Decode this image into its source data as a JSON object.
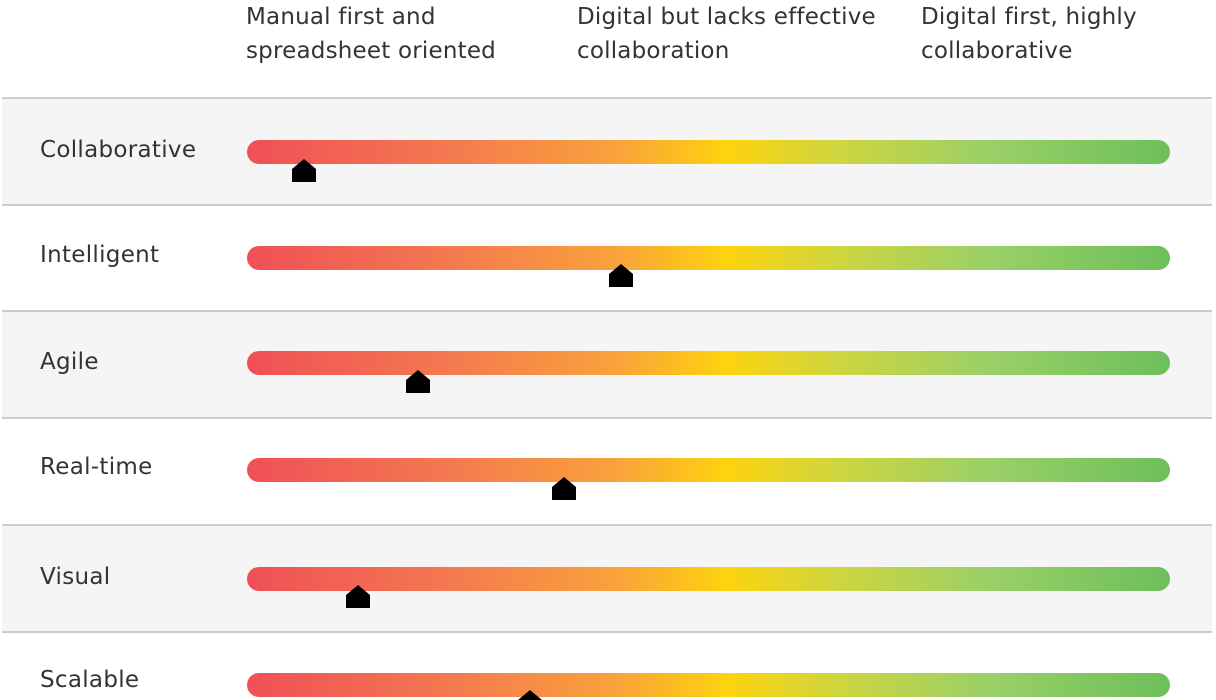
{
  "scale": {
    "labels": [
      "Manual first and spreadsheet oriented",
      "Digital but lacks effective collaboration",
      "Digital first, highly collaborative"
    ]
  },
  "rows": [
    {
      "label": "Collaborative",
      "score": 0.062
    },
    {
      "label": "Intelligent",
      "score": 0.405
    },
    {
      "label": "Agile",
      "score": 0.185
    },
    {
      "label": "Real-time",
      "score": 0.343
    },
    {
      "label": "Visual",
      "score": 0.12
    },
    {
      "label": "Scalable",
      "score": 0.307
    }
  ],
  "colors": {
    "gradient": [
      "#ef5057",
      "#f47950",
      "#f9a23b",
      "#fdd30e",
      "#cfd53f",
      "#9bd067",
      "#6dbf5b"
    ],
    "marker": "#000000"
  }
}
